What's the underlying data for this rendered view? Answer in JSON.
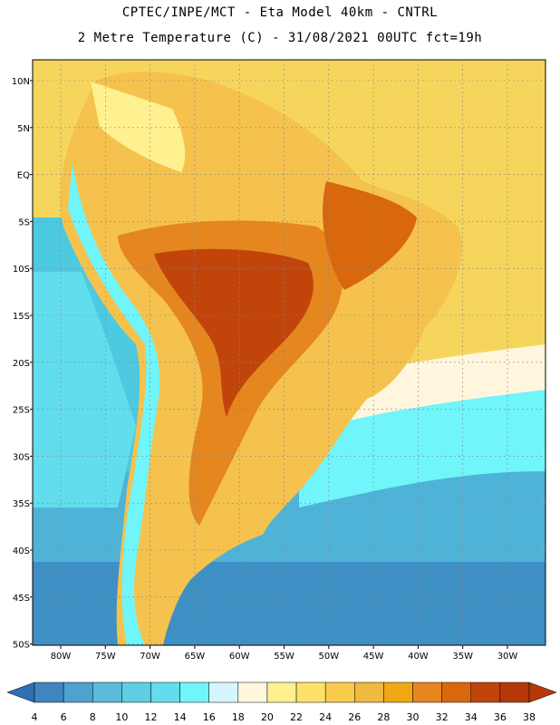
{
  "header": {
    "line1": "CPTEC/INPE/MCT -  Eta Model 40km - CNTRL",
    "line2": "2 Metre Temperature (C) - 31/08/2021 00UTC fct=19h"
  },
  "axes": {
    "lat_labels": [
      "10N",
      "5N",
      "EQ",
      "5S",
      "10S",
      "15S",
      "20S",
      "25S",
      "30S",
      "35S",
      "40S",
      "45S",
      "50S"
    ],
    "lon_labels": [
      "80W",
      "75W",
      "70W",
      "65W",
      "60W",
      "55W",
      "50W",
      "45W",
      "40W",
      "35W",
      "30W"
    ]
  },
  "colorbar": {
    "labels": [
      "4",
      "6",
      "8",
      "10",
      "12",
      "14",
      "16",
      "18",
      "20",
      "22",
      "24",
      "26",
      "28",
      "30",
      "32",
      "34",
      "36",
      "38"
    ],
    "colors": [
      "#2f6fb3",
      "#3f86c0",
      "#4da2cf",
      "#5bbad9",
      "#5fcde2",
      "#61dded",
      "#6ff5fa",
      "#d6f6ff",
      "#fff6dd",
      "#fff190",
      "#fde16a",
      "#f8cb4c",
      "#f0b93f",
      "#f1a714",
      "#e5861f",
      "#d9670c",
      "#c1440b",
      "#b53808"
    ],
    "ocean_atlantic": "#f6d55c",
    "ocean_pacific": "#5fcde2"
  }
}
